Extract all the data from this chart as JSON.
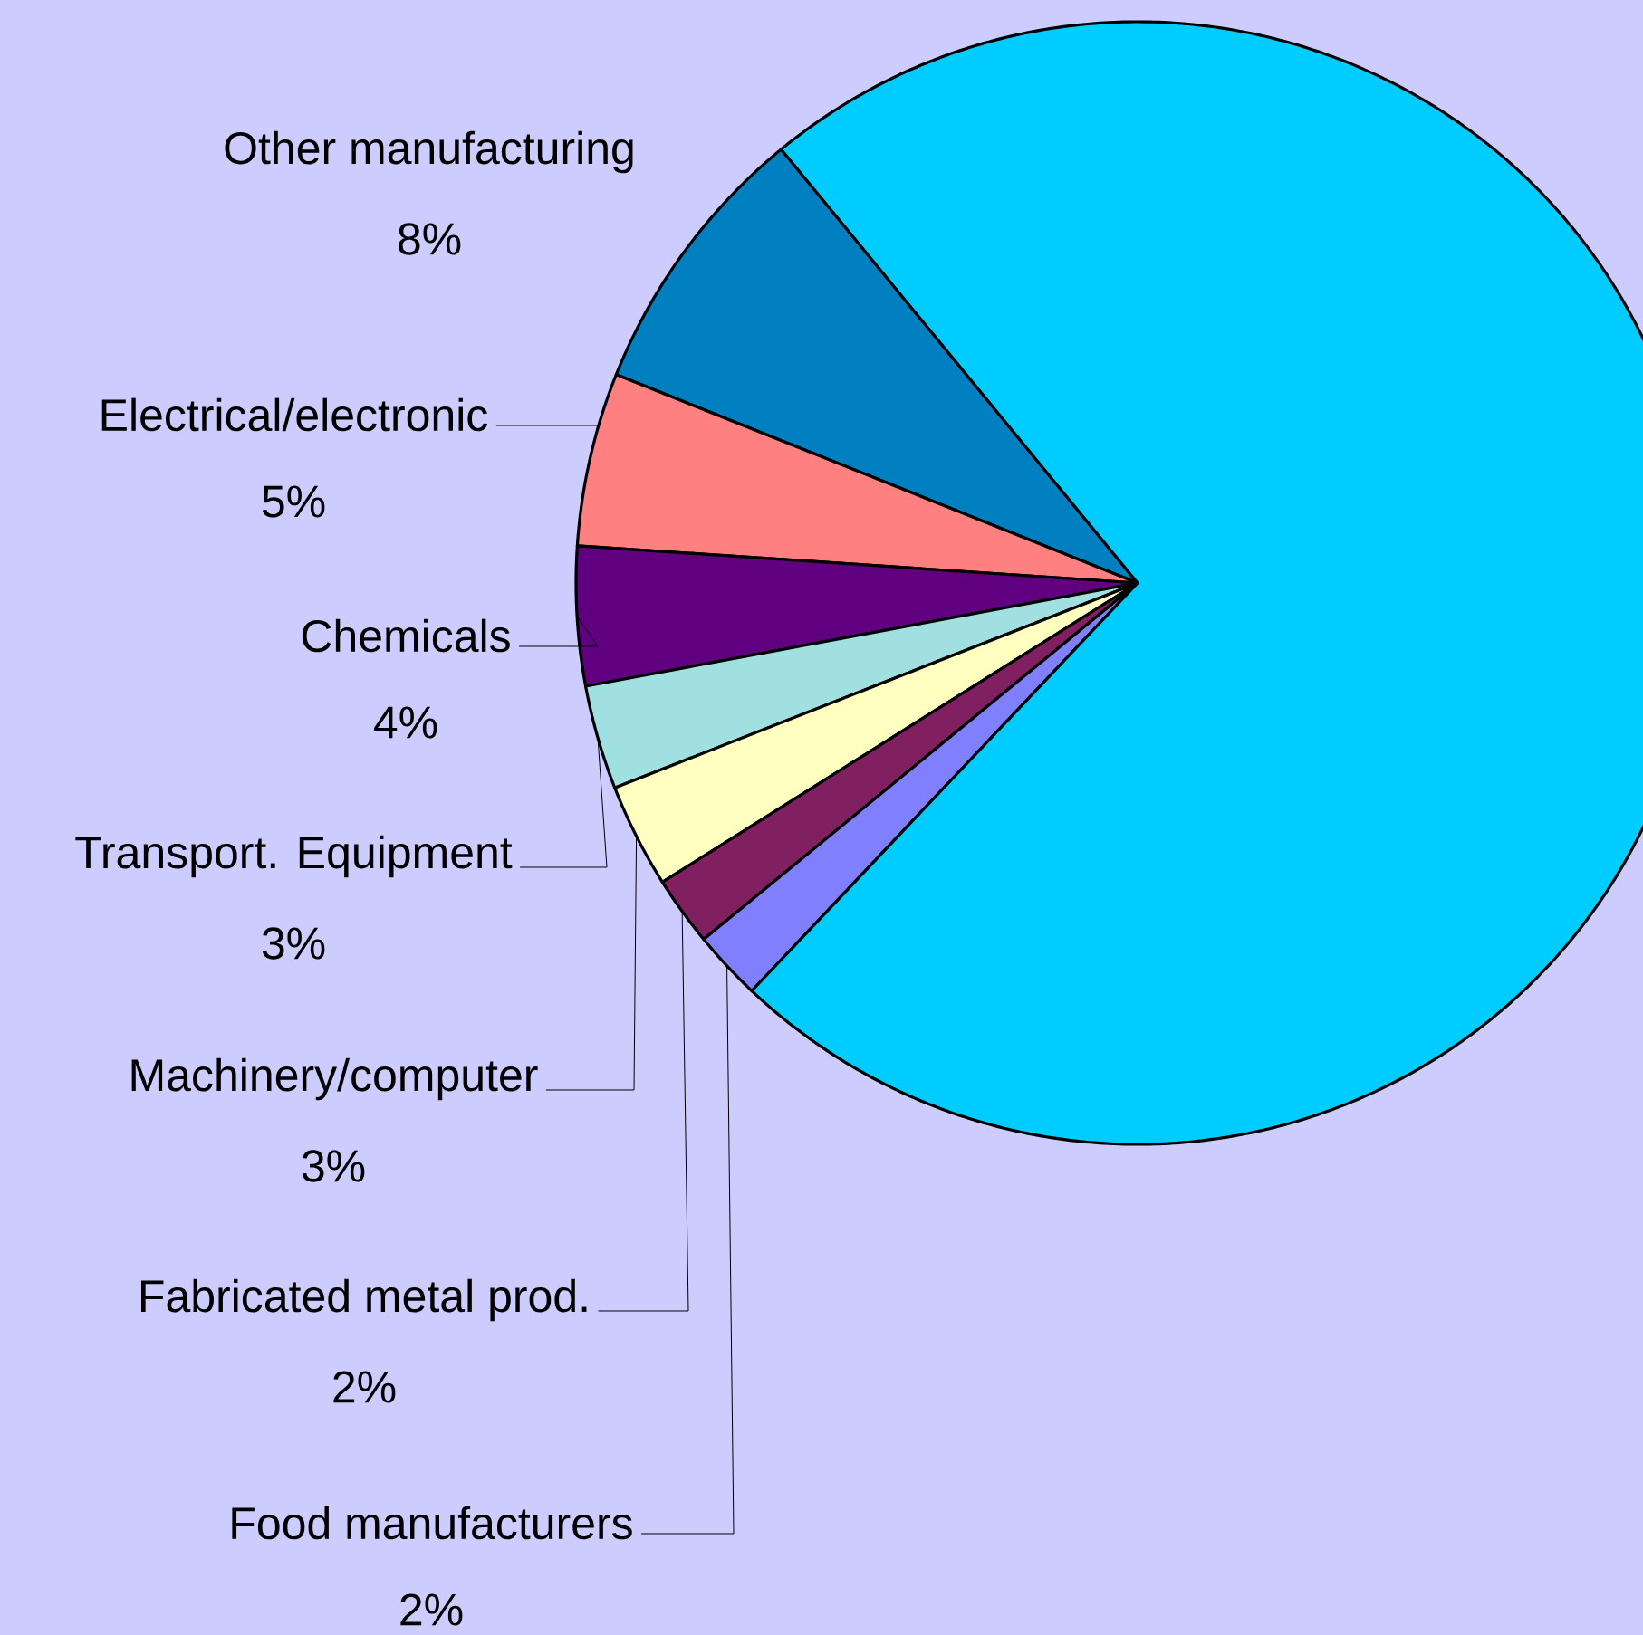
{
  "chart_data": {
    "type": "pie",
    "categories": [
      "Other manufacturing",
      "Electrical/electronic",
      "Chemicals",
      "Transport. Equipment",
      "Machinery/computer",
      "Fabricated metal prod.",
      "Food manufacturers",
      null
    ],
    "values": [
      8,
      5,
      4,
      3,
      3,
      2,
      2,
      73
    ],
    "value_labels": [
      "8%",
      "5%",
      "4%",
      "3%",
      "3%",
      "2%",
      "2%",
      null
    ],
    "colors": [
      "#0080c0",
      "#ff8080",
      "#600080",
      "#a0e0e0",
      "#ffffc0",
      "#802060",
      "#8080ff",
      "#00ccff"
    ]
  }
}
